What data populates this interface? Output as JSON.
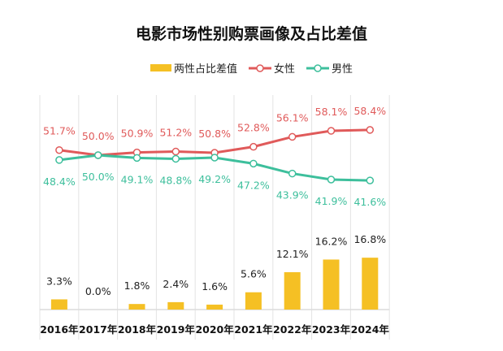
{
  "chart_data": {
    "type": "bar+line",
    "title": "电影市场性别购票画像及占比差值",
    "legend_position": "top",
    "categories": [
      "2016年",
      "2017年",
      "2018年",
      "2019年",
      "2020年",
      "2021年",
      "2022年",
      "2023年",
      "2024年"
    ],
    "series": [
      {
        "name": "两性占比差值",
        "type": "bar",
        "color": "#f5c024",
        "values": [
          3.3,
          0.0,
          1.8,
          2.4,
          1.6,
          5.6,
          12.1,
          16.2,
          16.8
        ],
        "labels": [
          "3.3%",
          "0.0%",
          "1.8%",
          "2.4%",
          "1.6%",
          "5.6%",
          "12.1%",
          "16.2%",
          "16.8%"
        ]
      },
      {
        "name": "女性",
        "type": "line",
        "color": "#e05a5a",
        "values": [
          51.7,
          50.0,
          50.9,
          51.2,
          50.8,
          52.8,
          56.1,
          58.1,
          58.4
        ],
        "labels": [
          "51.7%",
          "50.0%",
          "50.9%",
          "51.2%",
          "50.8%",
          "52.8%",
          "56.1%",
          "58.1%",
          "58.4%"
        ]
      },
      {
        "name": "男性",
        "type": "line",
        "color": "#3dbf9c",
        "values": [
          48.4,
          50.0,
          49.1,
          48.8,
          49.2,
          47.2,
          43.9,
          41.9,
          41.6
        ],
        "labels": [
          "48.4%",
          "50.0%",
          "49.1%",
          "48.8%",
          "49.2%",
          "47.2%",
          "43.9%",
          "41.9%",
          "41.6%"
        ]
      }
    ],
    "grid": "vertical"
  }
}
